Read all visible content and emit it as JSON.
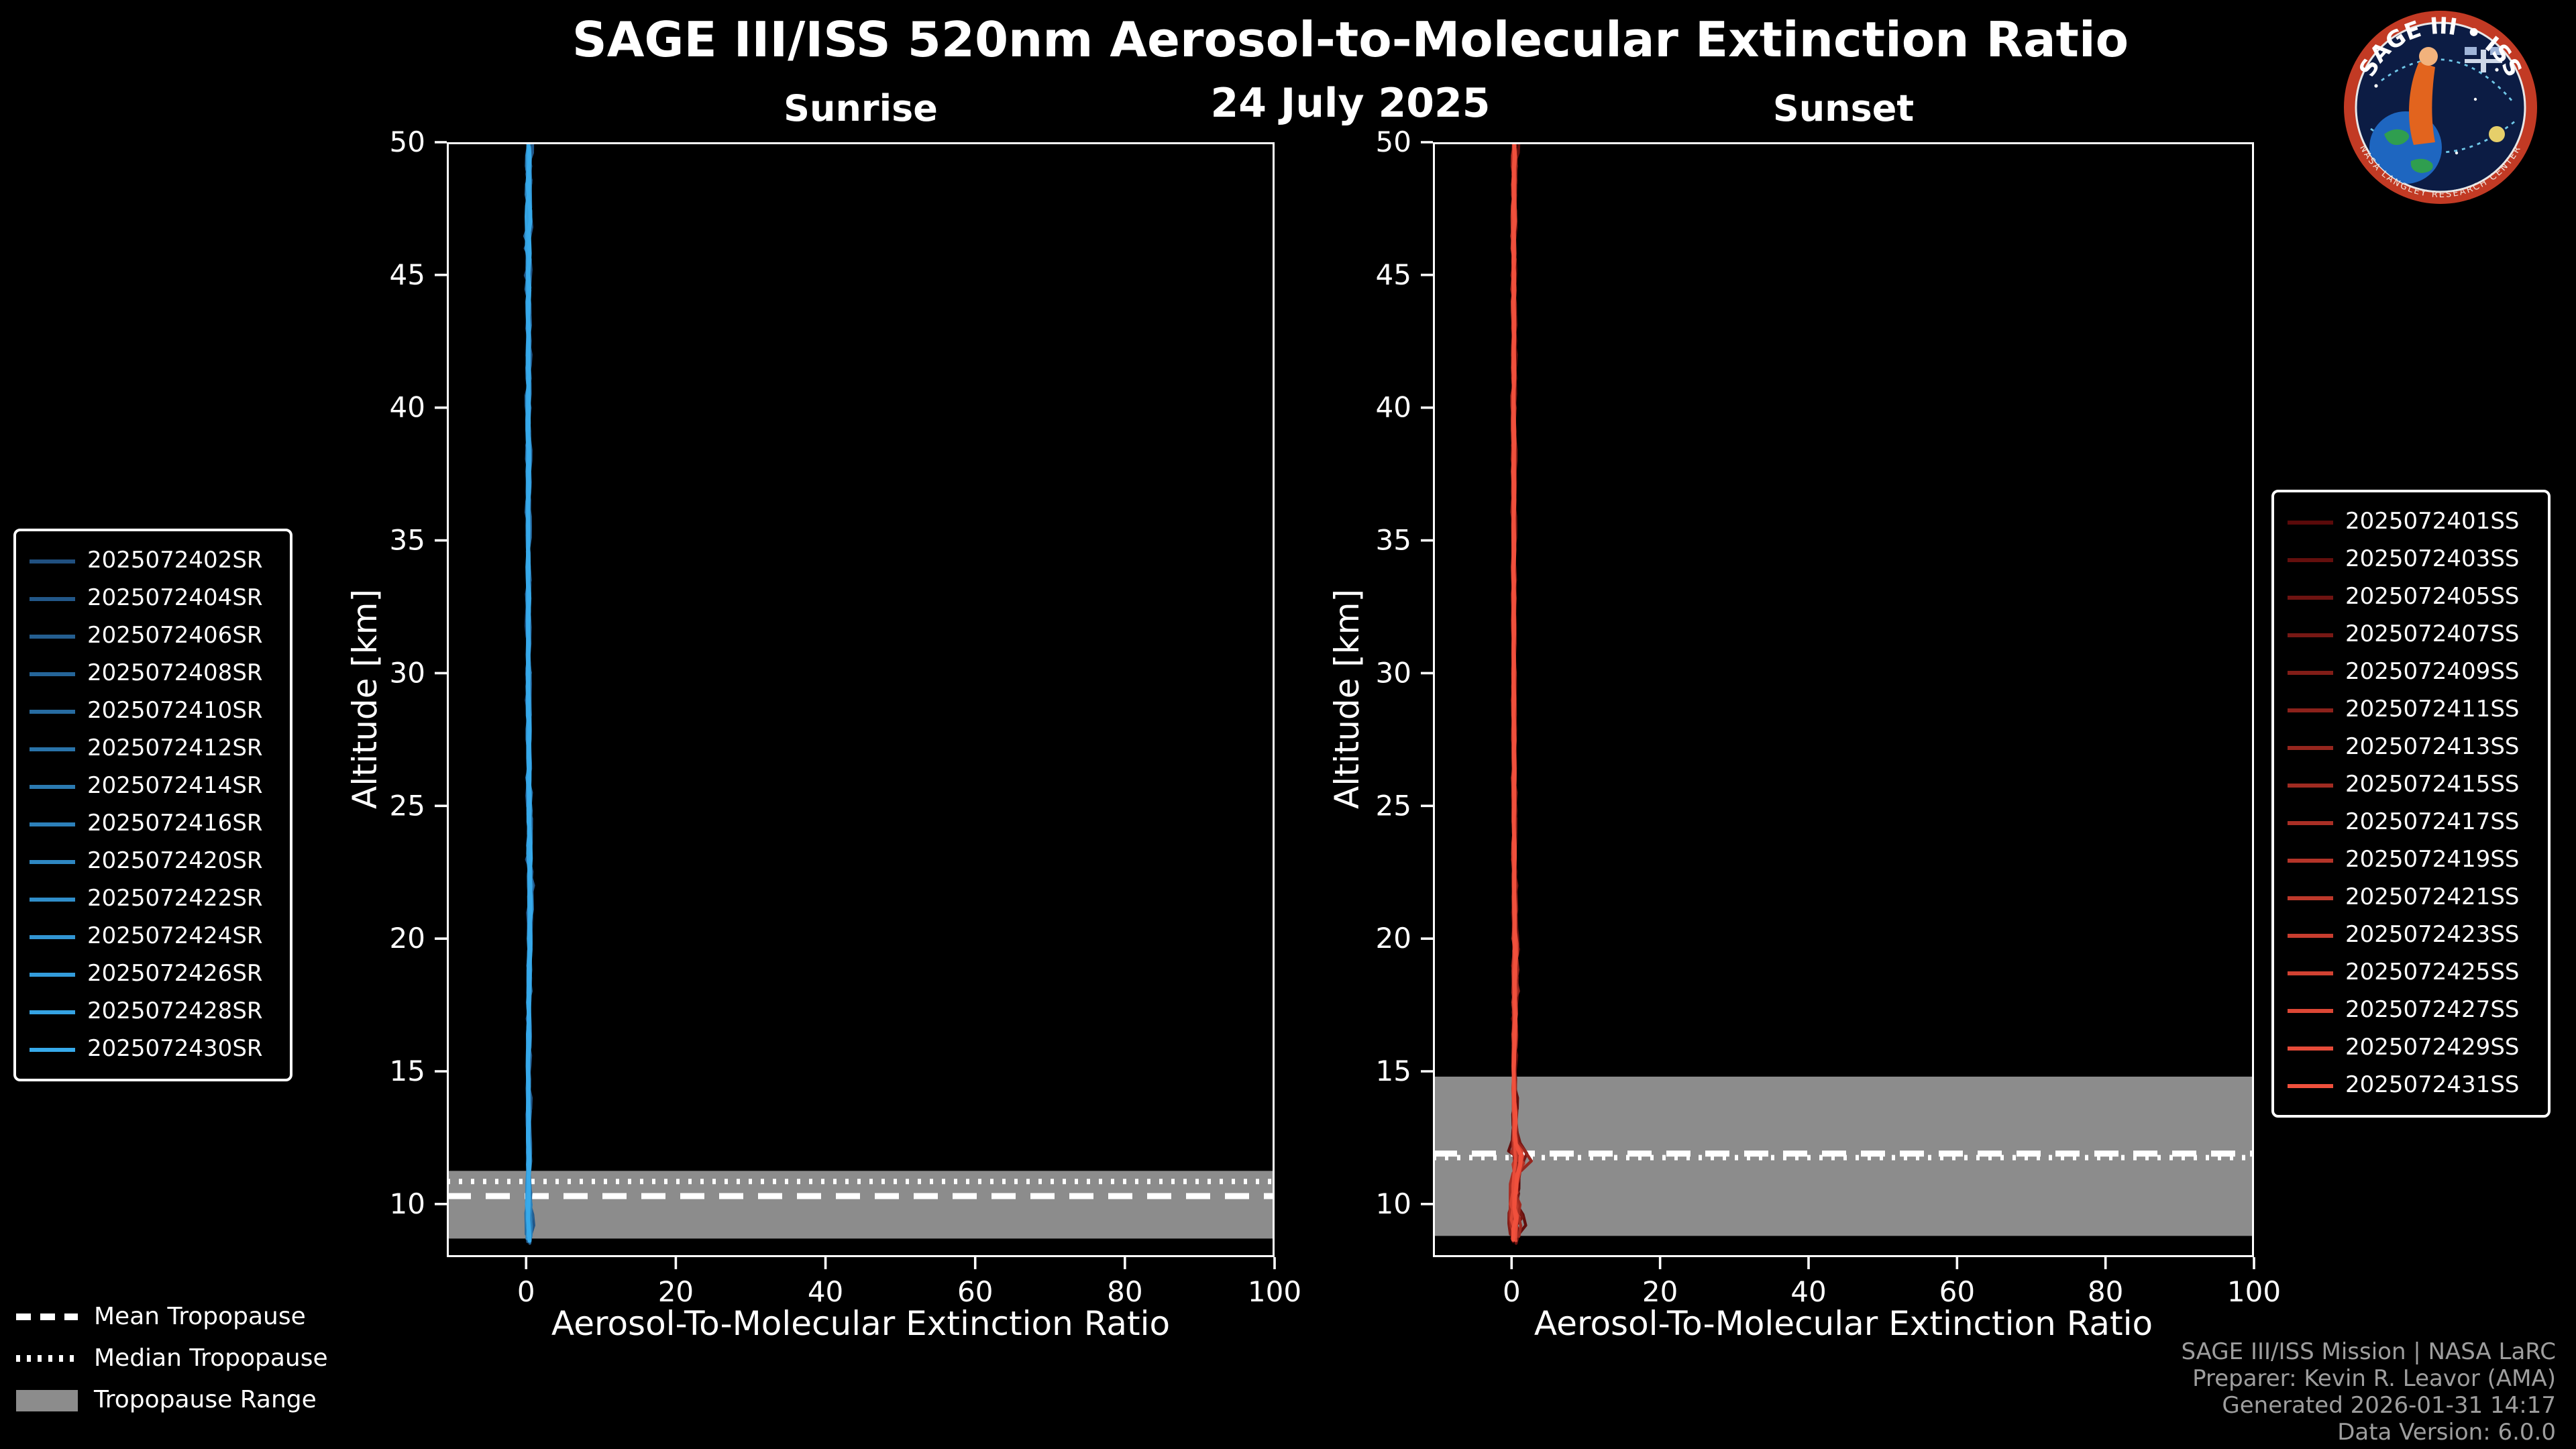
{
  "header": {
    "title": "SAGE III/ISS 520nm Aerosol-to-Molecular Extinction Ratio",
    "date": "24 July 2025"
  },
  "logo": {
    "arc_text": "SAGE III • ISS",
    "ring_text": "NASA LANGLEY RESEARCH CENTER"
  },
  "tropopause_legend": {
    "mean": "Mean Tropopause",
    "median": "Median Tropopause",
    "range": "Tropopause Range"
  },
  "footer": {
    "credits": [
      "SAGE III/ISS Mission | NASA LaRC",
      "Preparer: Kevin R. Leavor (AMA)",
      "Generated 2026-01-31 14:17",
      "Data Version: 6.0.0"
    ]
  },
  "chart_data": [
    {
      "type": "line",
      "title": "Sunrise",
      "xlabel": "Aerosol-To-Molecular Extinction Ratio",
      "ylabel": "Altitude [km]",
      "xlim": [
        -10.6,
        100
      ],
      "ylim": [
        8,
        50
      ],
      "xticks": [
        0,
        20,
        40,
        60,
        80,
        100
      ],
      "yticks": [
        10,
        15,
        20,
        25,
        30,
        35,
        40,
        45,
        50
      ],
      "grid": false,
      "legend_position": "outside-left",
      "alt_min": 8.5,
      "band_color": "#8c8c8c",
      "tropopause": {
        "mean_km": 10.3,
        "median_km": 10.85,
        "range_km": [
          8.7,
          11.25
        ]
      },
      "mean_profile": [
        [
          8.5,
          0.4
        ],
        [
          10,
          0.35
        ],
        [
          15,
          0.3
        ],
        [
          22,
          0.55
        ],
        [
          25,
          0.4
        ],
        [
          30,
          0.3
        ],
        [
          45,
          0.3
        ],
        [
          48,
          0.35
        ],
        [
          50,
          0.35
        ]
      ],
      "spread_profile": [
        [
          8.5,
          0.7
        ],
        [
          9.6,
          0.8
        ],
        [
          10.5,
          0.5
        ],
        [
          12,
          0.3
        ],
        [
          20,
          0.3
        ],
        [
          23,
          0.5
        ],
        [
          26,
          0.35
        ],
        [
          44,
          0.3
        ],
        [
          46,
          0.6
        ],
        [
          47.5,
          0.75
        ],
        [
          49,
          0.5
        ],
        [
          50,
          0.45
        ]
      ],
      "series": [
        {
          "name": "2025072402SR",
          "color": "#205080"
        },
        {
          "name": "2025072404SR",
          "color": "#225788"
        },
        {
          "name": "2025072406SR",
          "color": "#245e90"
        },
        {
          "name": "2025072408SR",
          "color": "#256599"
        },
        {
          "name": "2025072410SR",
          "color": "#276ca1"
        },
        {
          "name": "2025072412SR",
          "color": "#2973a9"
        },
        {
          "name": "2025072414SR",
          "color": "#2b7ab1"
        },
        {
          "name": "2025072416SR",
          "color": "#2c80ba"
        },
        {
          "name": "2025072420SR",
          "color": "#2e87c2"
        },
        {
          "name": "2025072422SR",
          "color": "#308eca"
        },
        {
          "name": "2025072424SR",
          "color": "#3295d2"
        },
        {
          "name": "2025072426SR",
          "color": "#339cdb"
        },
        {
          "name": "2025072428SR",
          "color": "#35a3e3"
        },
        {
          "name": "2025072430SR",
          "color": "#37aaeb"
        }
      ]
    },
    {
      "type": "line",
      "title": "Sunset",
      "xlabel": "Aerosol-To-Molecular Extinction Ratio",
      "ylabel": "Altitude [km]",
      "xlim": [
        -10.6,
        100
      ],
      "ylim": [
        8,
        50
      ],
      "xticks": [
        0,
        20,
        40,
        60,
        80,
        100
      ],
      "yticks": [
        10,
        15,
        20,
        25,
        30,
        35,
        40,
        45,
        50
      ],
      "grid": false,
      "legend_position": "outside-right",
      "alt_min": 8.5,
      "band_color": "#8c8c8c",
      "tropopause": {
        "mean_km": 11.9,
        "median_km": 11.75,
        "range_km": [
          8.8,
          14.8
        ]
      },
      "mean_profile": [
        [
          8.5,
          0.5
        ],
        [
          9.4,
          0.5
        ],
        [
          10.5,
          0.4
        ],
        [
          11.7,
          1.0
        ],
        [
          12.5,
          0.45
        ],
        [
          15,
          0.35
        ],
        [
          19.5,
          0.55
        ],
        [
          21,
          0.4
        ],
        [
          30,
          0.3
        ],
        [
          45,
          0.3
        ],
        [
          50,
          0.4
        ]
      ],
      "spread_profile": [
        [
          8.5,
          1.0
        ],
        [
          9.4,
          2.0
        ],
        [
          10.2,
          1.2
        ],
        [
          11,
          1.3
        ],
        [
          11.7,
          2.6
        ],
        [
          12.3,
          0.8
        ],
        [
          13,
          0.4
        ],
        [
          15,
          0.3
        ],
        [
          19.5,
          0.7
        ],
        [
          21,
          0.3
        ],
        [
          30,
          0.25
        ],
        [
          45,
          0.3
        ],
        [
          48,
          0.45
        ],
        [
          50,
          0.5
        ]
      ],
      "series": [
        {
          "name": "2025072401SS",
          "color": "#5a0a0a"
        },
        {
          "name": "2025072403SS",
          "color": "#640f0d"
        },
        {
          "name": "2025072405SS",
          "color": "#6e1311"
        },
        {
          "name": "2025072407SS",
          "color": "#781814"
        },
        {
          "name": "2025072409SS",
          "color": "#821d17"
        },
        {
          "name": "2025072411SS",
          "color": "#8c211b"
        },
        {
          "name": "2025072413SS",
          "color": "#96261e"
        },
        {
          "name": "2025072415SS",
          "color": "#a02b21"
        },
        {
          "name": "2025072417SS",
          "color": "#aa2f25"
        },
        {
          "name": "2025072419SS",
          "color": "#b43428"
        },
        {
          "name": "2025072421SS",
          "color": "#be392b"
        },
        {
          "name": "2025072423SS",
          "color": "#c83d2f"
        },
        {
          "name": "2025072425SS",
          "color": "#d24232"
        },
        {
          "name": "2025072427SS",
          "color": "#dc4735"
        },
        {
          "name": "2025072429SS",
          "color": "#e64b39"
        },
        {
          "name": "2025072431SS",
          "color": "#f0503c"
        }
      ]
    }
  ]
}
